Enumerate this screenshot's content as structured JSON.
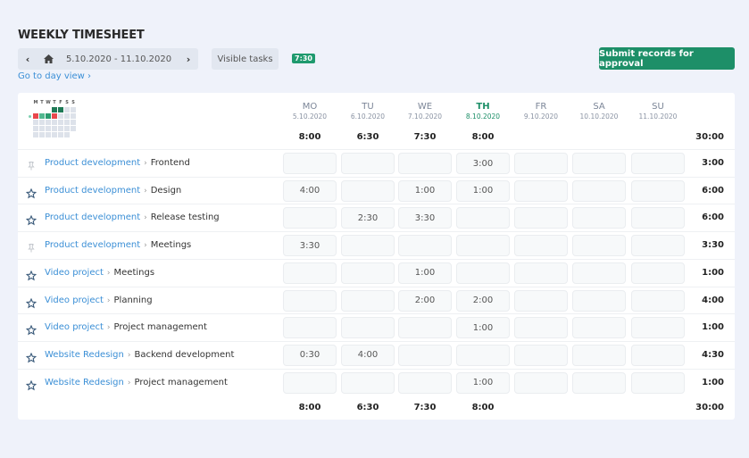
{
  "header": {
    "title": "WEEKLY TIMESHEET",
    "date_range": "5.10.2020 - 11.10.2020",
    "prev_icon": "‹",
    "next_icon": "›",
    "visible_tasks_label": "Visible tasks",
    "hours_badge": "7:30",
    "day_view_link": "Go to day view ›",
    "submit_label": "Submit records for approval"
  },
  "colors": {
    "accent_green": "#1d8f68",
    "link_blue": "#3b8fd6",
    "background": "#eff2fa",
    "mini_red": "#e9484d",
    "mini_green_dark": "#1f7a56",
    "mini_green": "#2a9c6f",
    "mini_green_light": "#52b890"
  },
  "mini_calendar": {
    "letters": [
      "M",
      "T",
      "W",
      "T",
      "F",
      "S",
      "S"
    ]
  },
  "days": [
    {
      "name": "MO",
      "date": "5.10.2020",
      "total": "8:00",
      "today": false
    },
    {
      "name": "TU",
      "date": "6.10.2020",
      "total": "6:30",
      "today": false
    },
    {
      "name": "WE",
      "date": "7.10.2020",
      "total": "7:30",
      "today": false
    },
    {
      "name": "TH",
      "date": "8.10.2020",
      "total": "8:00",
      "today": true
    },
    {
      "name": "FR",
      "date": "9.10.2020",
      "total": "",
      "today": false
    },
    {
      "name": "SA",
      "date": "10.10.2020",
      "total": "",
      "today": false
    },
    {
      "name": "SU",
      "date": "11.10.2020",
      "total": "",
      "today": false
    }
  ],
  "week_total": "30:00",
  "rows": [
    {
      "project": "Product development",
      "task": "Frontend",
      "pinned": false,
      "hours": [
        "",
        "",
        "",
        "3:00",
        "",
        "",
        ""
      ],
      "total": "3:00"
    },
    {
      "project": "Product development",
      "task": "Design",
      "pinned": true,
      "hours": [
        "4:00",
        "",
        "1:00",
        "1:00",
        "",
        "",
        ""
      ],
      "total": "6:00"
    },
    {
      "project": "Product development",
      "task": "Release testing",
      "pinned": true,
      "hours": [
        "",
        "2:30",
        "3:30",
        "",
        "",
        "",
        ""
      ],
      "total": "6:00"
    },
    {
      "project": "Product development",
      "task": "Meetings",
      "pinned": false,
      "hours": [
        "3:30",
        "",
        "",
        "",
        "",
        "",
        ""
      ],
      "total": "3:30"
    },
    {
      "project": "Video project",
      "task": "Meetings",
      "pinned": true,
      "hours": [
        "",
        "",
        "1:00",
        "",
        "",
        "",
        ""
      ],
      "total": "1:00"
    },
    {
      "project": "Video project",
      "task": "Planning",
      "pinned": true,
      "hours": [
        "",
        "",
        "2:00",
        "2:00",
        "",
        "",
        ""
      ],
      "total": "4:00"
    },
    {
      "project": "Video project",
      "task": "Project management",
      "pinned": true,
      "hours": [
        "",
        "",
        "",
        "1:00",
        "",
        "",
        ""
      ],
      "total": "1:00"
    },
    {
      "project": "Website Redesign",
      "task": "Backend development",
      "pinned": true,
      "hours": [
        "0:30",
        "4:00",
        "",
        "",
        "",
        "",
        ""
      ],
      "total": "4:30"
    },
    {
      "project": "Website Redesign",
      "task": "Project management",
      "pinned": true,
      "hours": [
        "",
        "",
        "",
        "1:00",
        "",
        "",
        ""
      ],
      "total": "1:00"
    }
  ]
}
